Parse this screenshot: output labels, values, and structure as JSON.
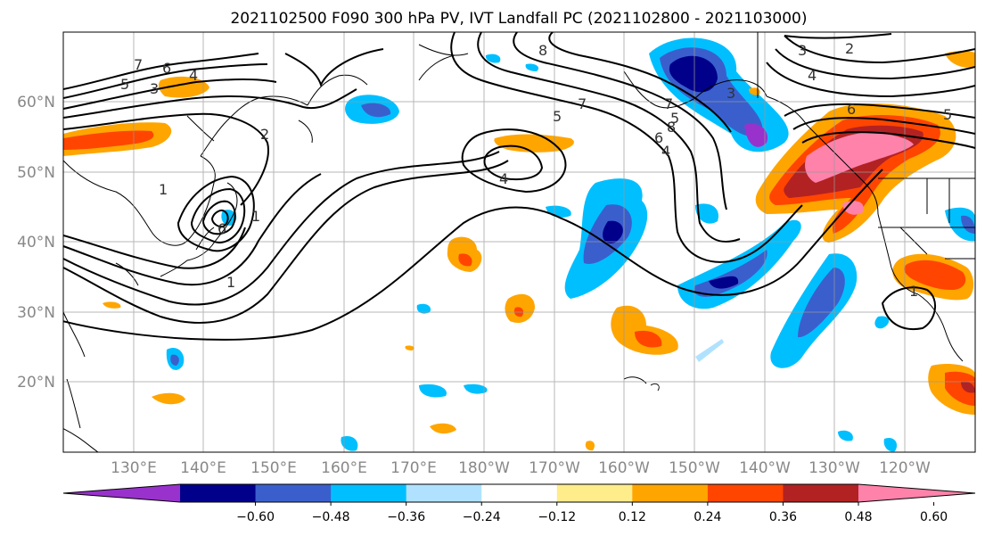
{
  "figure": {
    "title": "2021102500 F090 300 hPa PV, IVT Landfall PC (2021102800 - 2021103000)"
  },
  "map": {
    "projection": "equirectangular",
    "lon_range_east": [
      120,
      250
    ],
    "lat_range": [
      10,
      70
    ],
    "gridlines": true,
    "lat_tick_labels": [
      "60°N",
      "50°N",
      "40°N",
      "30°N",
      "20°N"
    ],
    "lon_tick_labels": [
      "130°E",
      "140°E",
      "150°E",
      "160°E",
      "170°E",
      "180°W",
      "170°W",
      "160°W",
      "150°W",
      "140°W",
      "130°W",
      "120°W"
    ],
    "contour_labels": [
      "7",
      "6",
      "5",
      "3",
      "4",
      "2",
      "1",
      "6",
      "1",
      "1",
      "4",
      "5",
      "7",
      "8",
      "6",
      "4",
      "5",
      "7",
      "8",
      "3",
      "2",
      "3",
      "4",
      "5",
      "6",
      "1"
    ]
  },
  "colorbar": {
    "extend": "both",
    "colors": [
      "#9932cc",
      "#00008b",
      "#3a5fcd",
      "#00bfff",
      "#b0e2ff",
      "#ffffff",
      "#ffec8b",
      "#ffa500",
      "#ff4500",
      "#b22222",
      "#ff82ab"
    ],
    "tick_labels": [
      "−0.60",
      "−0.48",
      "−0.36",
      "−0.24",
      "−0.12",
      "0.12",
      "0.24",
      "0.36",
      "0.48",
      "0.60"
    ]
  }
}
